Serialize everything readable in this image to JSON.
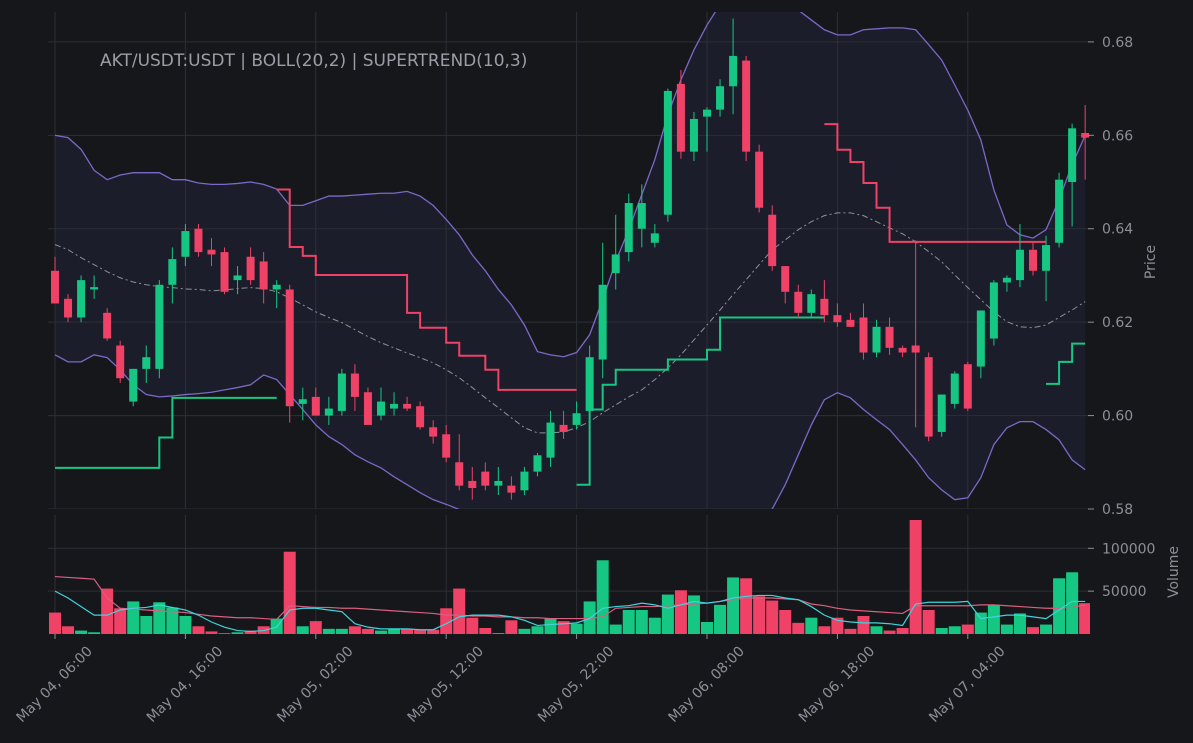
{
  "chart_data": [
    {
      "type": "candlestick",
      "title": "AKT/USDT:USDT | BOLL(20,2) | SUPERTREND(10,3)",
      "ylabel": "Price",
      "up_color": "#16c784",
      "down_color": "#ef4266",
      "grid": true,
      "ylim": [
        0.58,
        0.6864
      ],
      "yticks": [
        0.58,
        {
          "value": 0.6,
          "label": "0.60"
        },
        0.62,
        0.64,
        0.66,
        0.68
      ],
      "open": [
        0.631,
        0.625,
        0.621,
        0.627,
        0.622,
        0.615,
        0.603,
        0.61,
        0.61,
        0.628,
        0.634,
        0.64,
        0.6355,
        0.635,
        0.629,
        0.634,
        0.633,
        0.627,
        0.627,
        0.6025,
        0.604,
        0.6,
        0.601,
        0.609,
        0.605,
        0.6,
        0.6015,
        0.6025,
        0.602,
        0.5975,
        0.596,
        0.59,
        0.586,
        0.588,
        0.585,
        0.585,
        0.584,
        0.588,
        0.591,
        0.598,
        0.598,
        0.601,
        0.612,
        0.6305,
        0.635,
        0.64,
        0.637,
        0.643,
        0.671,
        0.6565,
        0.664,
        0.6655,
        0.6705,
        0.676,
        0.6565,
        0.643,
        0.632,
        0.6265,
        0.622,
        0.625,
        0.6215,
        0.6205,
        0.621,
        0.6135,
        0.619,
        0.6145,
        0.615,
        0.6125,
        0.5965,
        0.6025,
        0.611,
        0.6105,
        0.6165,
        0.6285,
        0.629,
        0.6355,
        0.631,
        0.637,
        0.65,
        0.6605
      ],
      "high": [
        0.634,
        0.626,
        0.63,
        0.63,
        0.623,
        0.616,
        0.61,
        0.615,
        0.629,
        0.636,
        0.641,
        0.641,
        0.638,
        0.636,
        0.632,
        0.636,
        0.635,
        0.629,
        0.628,
        0.606,
        0.606,
        0.604,
        0.61,
        0.611,
        0.606,
        0.606,
        0.605,
        0.604,
        0.603,
        0.599,
        0.598,
        0.596,
        0.589,
        0.59,
        0.589,
        0.587,
        0.589,
        0.592,
        0.601,
        0.601,
        0.603,
        0.615,
        0.637,
        0.643,
        0.6475,
        0.6495,
        0.641,
        0.67,
        0.674,
        0.665,
        0.666,
        0.672,
        0.685,
        0.677,
        0.658,
        0.645,
        0.632,
        0.628,
        0.627,
        0.629,
        0.624,
        0.622,
        0.624,
        0.6205,
        0.621,
        0.615,
        0.6375,
        0.6135,
        0.6045,
        0.6095,
        0.6115,
        0.6225,
        0.629,
        0.63,
        0.641,
        0.637,
        0.6385,
        0.652,
        0.6625,
        0.6665
      ],
      "low": [
        0.624,
        0.62,
        0.62,
        0.625,
        0.616,
        0.607,
        0.602,
        0.607,
        0.608,
        0.624,
        0.632,
        0.634,
        0.632,
        0.626,
        0.626,
        0.628,
        0.624,
        0.623,
        0.5985,
        0.599,
        0.6,
        0.598,
        0.6,
        0.601,
        0.598,
        0.599,
        0.6,
        0.601,
        0.597,
        0.594,
        0.59,
        0.584,
        0.582,
        0.584,
        0.583,
        0.582,
        0.583,
        0.587,
        0.589,
        0.595,
        0.597,
        0.598,
        0.608,
        0.627,
        0.633,
        0.636,
        0.636,
        0.6415,
        0.655,
        0.6545,
        0.6565,
        0.664,
        0.6645,
        0.6545,
        0.6435,
        0.631,
        0.624,
        0.621,
        0.621,
        0.62,
        0.619,
        0.619,
        0.612,
        0.6125,
        0.613,
        0.6125,
        0.5975,
        0.5945,
        0.5955,
        0.6015,
        0.601,
        0.608,
        0.615,
        0.6265,
        0.6275,
        0.63,
        0.6245,
        0.636,
        0.6405,
        0.6505
      ],
      "close": [
        0.624,
        0.621,
        0.629,
        0.6275,
        0.6165,
        0.608,
        0.61,
        0.6125,
        0.628,
        0.6335,
        0.6395,
        0.635,
        0.6345,
        0.6265,
        0.63,
        0.629,
        0.627,
        0.628,
        0.602,
        0.6035,
        0.6,
        0.6015,
        0.609,
        0.604,
        0.598,
        0.603,
        0.6025,
        0.6015,
        0.5975,
        0.5955,
        0.591,
        0.585,
        0.5845,
        0.585,
        0.586,
        0.5835,
        0.588,
        0.5915,
        0.5985,
        0.5965,
        0.6005,
        0.6125,
        0.628,
        0.6345,
        0.6455,
        0.6455,
        0.639,
        0.6695,
        0.6565,
        0.6635,
        0.6655,
        0.6705,
        0.677,
        0.6565,
        0.6445,
        0.632,
        0.6265,
        0.622,
        0.626,
        0.6215,
        0.62,
        0.619,
        0.6135,
        0.619,
        0.6145,
        0.6135,
        0.6135,
        0.5955,
        0.6045,
        0.609,
        0.6015,
        0.6225,
        0.6285,
        0.6295,
        0.6355,
        0.631,
        0.6365,
        0.6505,
        0.6615,
        0.6595
      ],
      "bb_upper": {
        "color": "#7b68c8",
        "values": [
          0.66,
          0.6595,
          0.657,
          0.6525,
          0.6505,
          0.6515,
          0.652,
          0.652,
          0.652,
          0.6505,
          0.6505,
          0.6498,
          0.6495,
          0.6495,
          0.6497,
          0.65,
          0.6495,
          0.6485,
          0.645,
          0.645,
          0.646,
          0.647,
          0.647,
          0.6472,
          0.6474,
          0.6476,
          0.6476,
          0.648,
          0.647,
          0.645,
          0.642,
          0.6387,
          0.6344,
          0.631,
          0.627,
          0.6237,
          0.6194,
          0.6137,
          0.613,
          0.6126,
          0.6135,
          0.6173,
          0.6248,
          0.633,
          0.6398,
          0.6473,
          0.6548,
          0.6644,
          0.6719,
          0.6783,
          0.6836,
          0.688,
          0.691,
          0.69,
          0.689,
          0.688,
          0.687,
          0.6868,
          0.6847,
          0.6826,
          0.6815,
          0.6815,
          0.6826,
          0.6828,
          0.683,
          0.683,
          0.6826,
          0.6794,
          0.6761,
          0.6708,
          0.6654,
          0.659,
          0.6483,
          0.6408,
          0.6387,
          0.638,
          0.6398,
          0.6462,
          0.6537,
          0.66
        ]
      },
      "bb_middle": {
        "color": "#8e9099",
        "values": [
          0.6366,
          0.6355,
          0.6338,
          0.6323,
          0.6308,
          0.6295,
          0.6286,
          0.628,
          0.6276,
          0.6274,
          0.6271,
          0.627,
          0.6267,
          0.6269,
          0.6272,
          0.6274,
          0.6272,
          0.6265,
          0.6252,
          0.6237,
          0.6222,
          0.621,
          0.6199,
          0.6184,
          0.6169,
          0.6156,
          0.6145,
          0.6134,
          0.6124,
          0.6113,
          0.6098,
          0.6081,
          0.606,
          0.6038,
          0.6017,
          0.5995,
          0.5974,
          0.5963,
          0.5963,
          0.5965,
          0.5974,
          0.5987,
          0.6006,
          0.6023,
          0.604,
          0.6055,
          0.6077,
          0.6102,
          0.613,
          0.6162,
          0.6194,
          0.6226,
          0.6259,
          0.6291,
          0.6323,
          0.6355,
          0.6376,
          0.6398,
          0.6415,
          0.6428,
          0.6434,
          0.6434,
          0.6428,
          0.6415,
          0.6402,
          0.6389,
          0.6372,
          0.6351,
          0.6329,
          0.6301,
          0.6274,
          0.6248,
          0.6222,
          0.6201,
          0.619,
          0.6188,
          0.6194,
          0.621,
          0.6226,
          0.6244
        ]
      },
      "bb_lower": {
        "color": "#7b68c8",
        "values": [
          0.613,
          0.6115,
          0.6115,
          0.613,
          0.6124,
          0.6098,
          0.6066,
          0.6045,
          0.604,
          0.6042,
          0.6045,
          0.6047,
          0.605,
          0.6055,
          0.606,
          0.6066,
          0.6087,
          0.6077,
          0.6045,
          0.6013,
          0.598,
          0.5955,
          0.5938,
          0.5916,
          0.5901,
          0.5888,
          0.5869,
          0.5852,
          0.5835,
          0.582,
          0.581,
          0.5799,
          0.578,
          0.576,
          0.574,
          0.572,
          0.57,
          0.568,
          0.567,
          0.566,
          0.566,
          0.567,
          0.568,
          0.569,
          0.57,
          0.57,
          0.57,
          0.569,
          0.568,
          0.567,
          0.567,
          0.568,
          0.57,
          0.573,
          0.576,
          0.58,
          0.5852,
          0.5916,
          0.598,
          0.6034,
          0.6049,
          0.6038,
          0.6013,
          0.5991,
          0.597,
          0.5938,
          0.5905,
          0.5867,
          0.5841,
          0.582,
          0.5824,
          0.5867,
          0.5938,
          0.5974,
          0.5987,
          0.5987,
          0.597,
          0.5948,
          0.5905,
          0.5884
        ]
      },
      "band_fill": "#1c1d2a",
      "supertrend_up": {
        "color": "#16c784",
        "values": [
          0.5888,
          0.5888,
          0.5888,
          0.5888,
          0.5888,
          0.5888,
          0.5888,
          0.5888,
          0.5953,
          0.6038,
          0.6038,
          0.6038,
          0.6038,
          0.6038,
          0.6038,
          0.6038,
          0.6038,
          0.6038,
          null,
          null,
          null,
          null,
          null,
          null,
          null,
          null,
          null,
          null,
          null,
          null,
          null,
          null,
          null,
          null,
          null,
          null,
          null,
          null,
          null,
          null,
          0.5852,
          0.6013,
          0.6066,
          0.6098,
          0.6098,
          0.6098,
          0.6098,
          0.612,
          0.612,
          0.612,
          0.6141,
          0.621,
          0.621,
          0.621,
          0.621,
          0.621,
          0.621,
          0.621,
          0.621,
          0.621,
          null,
          null,
          null,
          null,
          null,
          null,
          null,
          null,
          null,
          null,
          null,
          null,
          null,
          null,
          null,
          null,
          0.6068,
          0.6115,
          0.6154,
          0.6154
        ]
      },
      "supertrend_down": {
        "color": "#ef4266",
        "values": [
          null,
          null,
          null,
          null,
          null,
          null,
          null,
          null,
          null,
          null,
          null,
          null,
          null,
          null,
          null,
          null,
          null,
          0.6484,
          0.6361,
          0.6342,
          0.6301,
          0.6301,
          0.6301,
          0.6301,
          0.6301,
          0.6301,
          0.6301,
          0.622,
          0.6188,
          0.6188,
          0.6156,
          0.6128,
          0.6128,
          0.6098,
          0.6055,
          0.6055,
          0.6055,
          0.6055,
          0.6055,
          0.6055,
          0.6055,
          null,
          null,
          null,
          null,
          null,
          null,
          null,
          null,
          null,
          null,
          null,
          null,
          null,
          null,
          null,
          null,
          null,
          null,
          0.6624,
          0.6569,
          0.6543,
          0.6498,
          0.6445,
          0.6372,
          0.6372,
          0.6372,
          0.6372,
          0.6372,
          0.6372,
          0.6372,
          0.6372,
          0.6372,
          0.6372,
          0.6372,
          0.6372,
          0.6372,
          null,
          null,
          null
        ]
      }
    },
    {
      "type": "bar",
      "ylabel": "Volume",
      "grid": true,
      "ylim": [
        0,
        133000
      ],
      "yticks": [
        50000,
        100000
      ],
      "categories": [
        "May 04, 06:00",
        null,
        null,
        null,
        null,
        null,
        null,
        null,
        null,
        null,
        "May 04, 16:00",
        null,
        null,
        null,
        null,
        null,
        null,
        null,
        null,
        null,
        "May 05, 02:00",
        null,
        null,
        null,
        null,
        null,
        null,
        null,
        null,
        null,
        "May 05, 12:00",
        null,
        null,
        null,
        null,
        null,
        null,
        null,
        null,
        null,
        "May 05, 22:00",
        null,
        null,
        null,
        null,
        null,
        null,
        null,
        null,
        null,
        "May 06, 08:00",
        null,
        null,
        null,
        null,
        null,
        null,
        null,
        null,
        null,
        "May 06, 18:00",
        null,
        null,
        null,
        null,
        null,
        null,
        null,
        null,
        null,
        "May 07, 04:00",
        null,
        null,
        null,
        null,
        null,
        null,
        null,
        null,
        null
      ],
      "values": [
        25000,
        9000,
        4000,
        2000,
        53000,
        30000,
        38000,
        21000,
        37000,
        31000,
        21000,
        9000,
        3000,
        1000,
        2000,
        4000,
        9000,
        18000,
        96000,
        9000,
        15000,
        6000,
        6000,
        9000,
        6000,
        4000,
        6000,
        6000,
        5000,
        5000,
        30000,
        53000,
        19000,
        7000,
        1000,
        16000,
        6000,
        9000,
        18000,
        15000,
        12000,
        38000,
        86000,
        11000,
        28000,
        28000,
        19000,
        46000,
        51000,
        45000,
        14000,
        34000,
        66000,
        65000,
        44000,
        39000,
        28000,
        13000,
        19000,
        9000,
        19000,
        6000,
        21000,
        9000,
        4000,
        7000,
        133000,
        28000,
        7000,
        9000,
        11000,
        25000,
        34000,
        11000,
        24000,
        8000,
        11000,
        65000,
        72000,
        36000
      ],
      "ma_slow": {
        "color": "#d9607f",
        "values": [
          67000,
          66000,
          65000,
          64000,
          42000,
          30000,
          29000,
          28000,
          27000,
          26000,
          25000,
          23000,
          21000,
          20000,
          19000,
          19000,
          18000,
          17000,
          33000,
          32000,
          31000,
          31000,
          30000,
          30000,
          29000,
          28000,
          27000,
          26000,
          25000,
          24000,
          22000,
          22000,
          21000,
          21000,
          20000,
          20000,
          19000,
          19000,
          18000,
          18000,
          18000,
          18000,
          20000,
          30000,
          31000,
          32000,
          32000,
          33000,
          34000,
          35000,
          36000,
          38000,
          40000,
          42000,
          42000,
          42000,
          41000,
          40000,
          35000,
          33000,
          30000,
          28000,
          27000,
          26000,
          25000,
          24000,
          33000,
          33000,
          33000,
          33000,
          33000,
          34000,
          34000,
          33000,
          32000,
          31000,
          30000,
          30000,
          31000,
          34000
        ]
      },
      "ma_fast": {
        "color": "#3fd4dc",
        "values": [
          50000,
          42000,
          32000,
          22000,
          22000,
          28000,
          30000,
          31000,
          34000,
          31000,
          28000,
          22000,
          14000,
          8000,
          4000,
          3000,
          4000,
          8000,
          28000,
          30000,
          30000,
          28000,
          26000,
          12000,
          8000,
          6000,
          6000,
          6000,
          5000,
          5000,
          12000,
          20000,
          22000,
          22000,
          22000,
          20000,
          16000,
          10000,
          11000,
          12000,
          13000,
          18000,
          30000,
          32000,
          33000,
          36000,
          34000,
          30000,
          34000,
          38000,
          36000,
          38000,
          42000,
          44000,
          45000,
          45000,
          42000,
          40000,
          32000,
          22000,
          16000,
          14000,
          13000,
          13000,
          12000,
          10000,
          35000,
          37000,
          37000,
          37000,
          38000,
          18000,
          20000,
          22000,
          22000,
          20000,
          18000,
          28000,
          38000,
          38000
        ]
      }
    }
  ]
}
